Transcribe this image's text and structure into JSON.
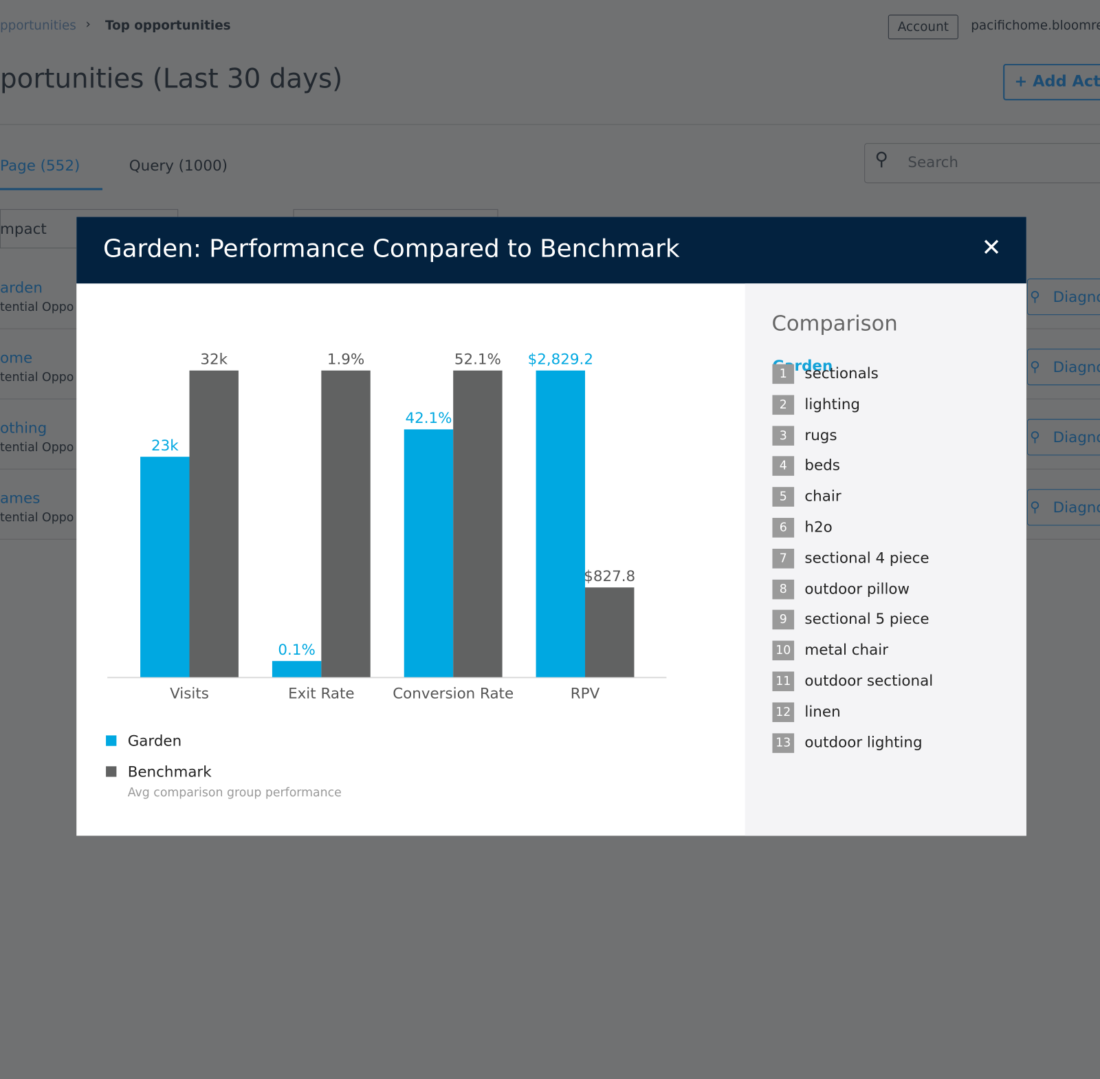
{
  "header": {
    "breadcrumb": [
      "pportunities",
      "Top opportunities"
    ],
    "account": "Account",
    "site": "pacifichome.bloomre"
  },
  "page": {
    "title": "portunities (Last 30 days)",
    "add_button": "Add Acti",
    "tabs": [
      "Page (552)",
      "Query (1000)"
    ],
    "search_placeholder": "Search",
    "sort": "mpact",
    "rows": [
      {
        "name": "arden",
        "sub": "tential Oppo",
        "action": "Diagno"
      },
      {
        "name": "ome",
        "sub": "tential Oppo",
        "action": "Diagno"
      },
      {
        "name": "othing",
        "sub": "tential Oppo",
        "action": "Diagno"
      },
      {
        "name": "ames",
        "sub": "tential Oppo",
        "action": "Diagno"
      }
    ]
  },
  "modal": {
    "title": "Garden: Performance Compared to Benchmark",
    "legend_note": "Avg comparison group performance",
    "comparison": {
      "heading": "Comparison",
      "group": "Garden",
      "items": [
        {
          "rank": 1,
          "label": "sectionals"
        },
        {
          "rank": 2,
          "label": "lighting"
        },
        {
          "rank": 3,
          "label": "rugs"
        },
        {
          "rank": 4,
          "label": "beds"
        },
        {
          "rank": 5,
          "label": "chair"
        },
        {
          "rank": 6,
          "label": "h2o"
        },
        {
          "rank": 7,
          "label": "sectional 4 piece"
        },
        {
          "rank": 8,
          "label": "outdoor pillow"
        },
        {
          "rank": 9,
          "label": "sectional 5 piece"
        },
        {
          "rank": 10,
          "label": "metal chair"
        },
        {
          "rank": 11,
          "label": "outdoor sectional"
        },
        {
          "rank": 12,
          "label": "linen"
        },
        {
          "rank": 13,
          "label": "outdoor lighting"
        }
      ]
    }
  },
  "chart_data": {
    "type": "bar",
    "categories": [
      "Visits",
      "Exit Rate",
      "Conversion Rate",
      "RPV"
    ],
    "series": [
      {
        "name": "Garden",
        "color": "#00a8e1",
        "values": [
          23000,
          0.1,
          42.1,
          2829.2
        ],
        "value_labels": [
          "23k",
          "0.1%",
          "42.1%",
          "$2,829.2"
        ]
      },
      {
        "name": "Benchmark",
        "color": "#616262",
        "values": [
          32000,
          1.9,
          52.1,
          827.8
        ],
        "value_labels": [
          "32k",
          "1.9%",
          "52.1%",
          "$827.8"
        ]
      }
    ]
  }
}
